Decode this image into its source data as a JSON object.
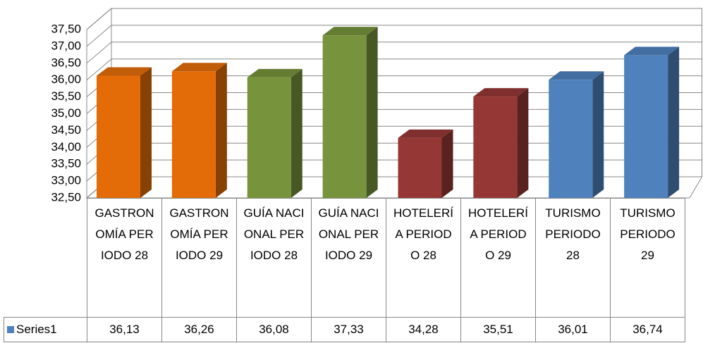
{
  "chart_data": {
    "type": "bar3d",
    "categories": [
      "GASTRONOMÍA PERIODO 28",
      "GASTRONOMÍA PERIODO 29",
      "GUÍA NACIONAL PERIODO 28",
      "GUÍA NACIONAL PERIODO 29",
      "HOTELERÍA PERIODO 28",
      "HOTELERÍA PERIODO 29",
      "TURISMO PERIODO 28",
      "TURISMO PERIODO 29"
    ],
    "series": [
      {
        "name": "Series1",
        "color": "#4f81bd",
        "values": [
          36.13,
          36.26,
          36.08,
          37.33,
          34.28,
          35.51,
          36.01,
          36.74
        ],
        "value_labels": [
          "36,13",
          "36,26",
          "36,08",
          "37,33",
          "34,28",
          "35,51",
          "36,01",
          "36,74"
        ],
        "colors": [
          "#e36c09",
          "#e36c09",
          "#77933c",
          "#77933c",
          "#953735",
          "#953735",
          "#4f81bd",
          "#4f81bd"
        ]
      }
    ],
    "ylim": [
      32.5,
      37.5
    ],
    "yticks": [
      {
        "value": 32.5,
        "label": "32,50"
      },
      {
        "value": 33,
        "label": "33,00"
      },
      {
        "value": 33.5,
        "label": "33,50"
      },
      {
        "value": 34,
        "label": "34,00"
      },
      {
        "value": 34.5,
        "label": "34,50"
      },
      {
        "value": 35,
        "label": "35,00"
      },
      {
        "value": 35.5,
        "label": "35,50"
      },
      {
        "value": 36,
        "label": "36,00"
      },
      {
        "value": 36.5,
        "label": "36,50"
      },
      {
        "value": 37,
        "label": "37,00"
      },
      {
        "value": 37.5,
        "label": "37,50"
      }
    ],
    "grid": true,
    "data_table": true
  }
}
